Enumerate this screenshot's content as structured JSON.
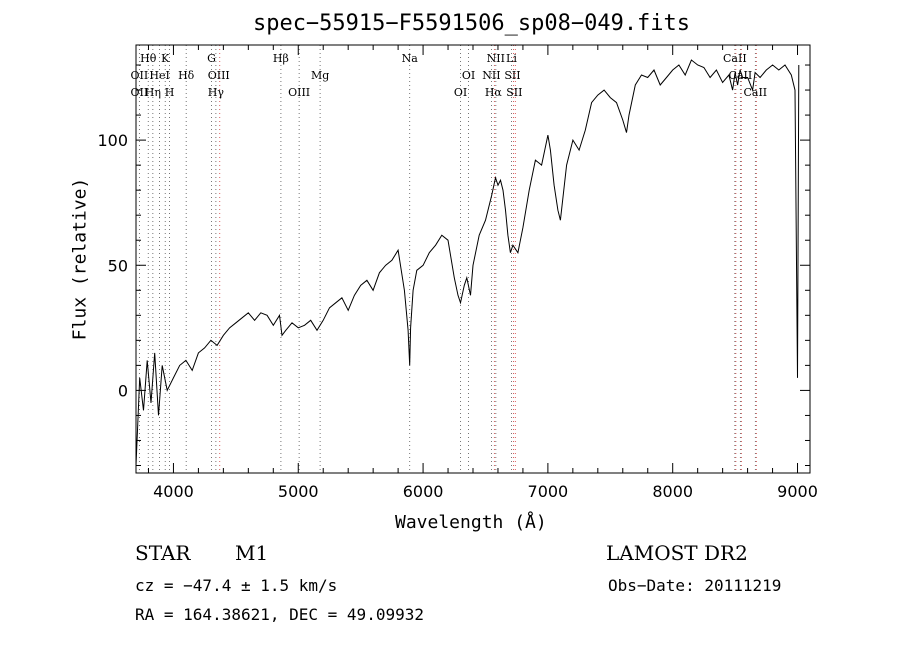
{
  "chart_data": {
    "type": "line",
    "title": "spec−55915−F5591506_sp08−049.fits",
    "xlabel": "Wavelength (Å)",
    "ylabel": "Flux (relative)",
    "xlim": [
      3700,
      9100
    ],
    "ylim": [
      -33,
      138
    ],
    "x_ticks": [
      4000,
      5000,
      6000,
      7000,
      8000,
      9000
    ],
    "y_ticks": [
      0,
      50,
      100
    ],
    "grid": false,
    "series": [
      {
        "x": [
          3700,
          3730,
          3760,
          3790,
          3820,
          3850,
          3880,
          3910,
          3950,
          4000,
          4050,
          4100,
          4150,
          4200,
          4250,
          4300,
          4350,
          4400,
          4450,
          4500,
          4550,
          4600,
          4650,
          4700,
          4750,
          4800,
          4850,
          4870,
          4900,
          4950,
          5000,
          5050,
          5100,
          5150,
          5200,
          5250,
          5300,
          5350,
          5400,
          5450,
          5500,
          5550,
          5600,
          5650,
          5700,
          5750,
          5800,
          5850,
          5880,
          5893,
          5900,
          5920,
          5950,
          6000,
          6050,
          6100,
          6150,
          6200,
          6250,
          6280,
          6300,
          6330,
          6350,
          6380,
          6400,
          6450,
          6500,
          6550,
          6580,
          6600,
          6620,
          6640,
          6660,
          6680,
          6700,
          6720,
          6760,
          6800,
          6850,
          6900,
          6950,
          7000,
          7020,
          7050,
          7080,
          7100,
          7150,
          7200,
          7250,
          7300,
          7350,
          7400,
          7450,
          7500,
          7550,
          7600,
          7630,
          7650,
          7700,
          7750,
          7800,
          7850,
          7900,
          7950,
          8000,
          8050,
          8100,
          8150,
          8200,
          8250,
          8300,
          8350,
          8400,
          8450,
          8480,
          8500,
          8520,
          8540,
          8560,
          8600,
          8640,
          8660,
          8700,
          8750,
          8800,
          8850,
          8900,
          8950,
          8980,
          9000,
          9010
        ],
        "y": [
          -30,
          5,
          -8,
          12,
          -5,
          15,
          -10,
          10,
          0,
          5,
          10,
          12,
          8,
          15,
          17,
          20,
          18,
          22,
          25,
          27,
          29,
          31,
          28,
          31,
          30,
          26,
          30,
          22,
          24,
          27,
          25,
          26,
          28,
          24,
          28,
          33,
          35,
          37,
          32,
          38,
          42,
          44,
          40,
          47,
          50,
          52,
          56,
          40,
          24,
          10,
          25,
          40,
          48,
          50,
          55,
          58,
          62,
          60,
          45,
          38,
          35,
          42,
          45,
          38,
          50,
          62,
          68,
          78,
          85,
          82,
          84,
          80,
          72,
          62,
          55,
          58,
          55,
          65,
          80,
          92,
          90,
          102,
          96,
          82,
          72,
          68,
          90,
          100,
          96,
          104,
          115,
          118,
          120,
          117,
          115,
          108,
          103,
          110,
          122,
          126,
          125,
          128,
          122,
          125,
          128,
          130,
          126,
          132,
          130,
          129,
          125,
          128,
          123,
          126,
          120,
          127,
          122,
          128,
          125,
          125,
          120,
          127,
          125,
          128,
          130,
          128,
          130,
          126,
          120,
          5,
          130
        ]
      }
    ],
    "line_labels": [
      {
        "text": "Hθ",
        "wl": 3798,
        "row": 0
      },
      {
        "text": "K",
        "wl": 3934,
        "row": 0
      },
      {
        "text": "G",
        "wl": 4305,
        "row": 0
      },
      {
        "text": "Hβ",
        "wl": 4861,
        "row": 0
      },
      {
        "text": "Na",
        "wl": 5893,
        "row": 0
      },
      {
        "text": "NII",
        "wl": 6583,
        "row": 0
      },
      {
        "text": "Li",
        "wl": 6708,
        "row": 0
      },
      {
        "text": "CaII",
        "wl": 8498,
        "row": 0
      },
      {
        "text": "OII",
        "wl": 3727,
        "row": 1
      },
      {
        "text": "HeI",
        "wl": 3889,
        "row": 1
      },
      {
        "text": "Hδ",
        "wl": 4102,
        "row": 1
      },
      {
        "text": "OIII",
        "wl": 4363,
        "row": 1
      },
      {
        "text": "Mg",
        "wl": 5175,
        "row": 1
      },
      {
        "text": "OI",
        "wl": 6364,
        "row": 1
      },
      {
        "text": "NII",
        "wl": 6548,
        "row": 1
      },
      {
        "text": "SII",
        "wl": 6716,
        "row": 1
      },
      {
        "text": "CaII",
        "wl": 8542,
        "row": 1
      },
      {
        "text": "OII",
        "wl": 3727,
        "row": 2
      },
      {
        "text": "Hη",
        "wl": 3835,
        "row": 2
      },
      {
        "text": "H",
        "wl": 3969,
        "row": 2
      },
      {
        "text": "Hγ",
        "wl": 4340,
        "row": 2
      },
      {
        "text": "OIII",
        "wl": 5007,
        "row": 2
      },
      {
        "text": "OI",
        "wl": 6300,
        "row": 2
      },
      {
        "text": "Hα",
        "wl": 6563,
        "row": 2
      },
      {
        "text": "SII",
        "wl": 6731,
        "row": 2
      },
      {
        "text": "CaII",
        "wl": 8662,
        "row": 2
      }
    ],
    "line_markers": {
      "black": [
        3727,
        3798,
        3835,
        3889,
        3934,
        3969,
        4102,
        4305,
        4340,
        4861,
        5007,
        5175,
        5893,
        6300,
        6364,
        6548,
        6583,
        6708,
        8498,
        8542,
        8662
      ],
      "red": [
        4363,
        6563,
        6716,
        6731,
        8498,
        8542,
        8662
      ]
    }
  },
  "info": {
    "object_type": "STAR",
    "subclass": "M1",
    "survey": "LAMOST DR2",
    "cz": "cz = −47.4 ± 1.5 km/s",
    "obs_date": "Obs−Date: 20111219",
    "coords": "RA = 164.38621, DEC =  49.09932"
  }
}
